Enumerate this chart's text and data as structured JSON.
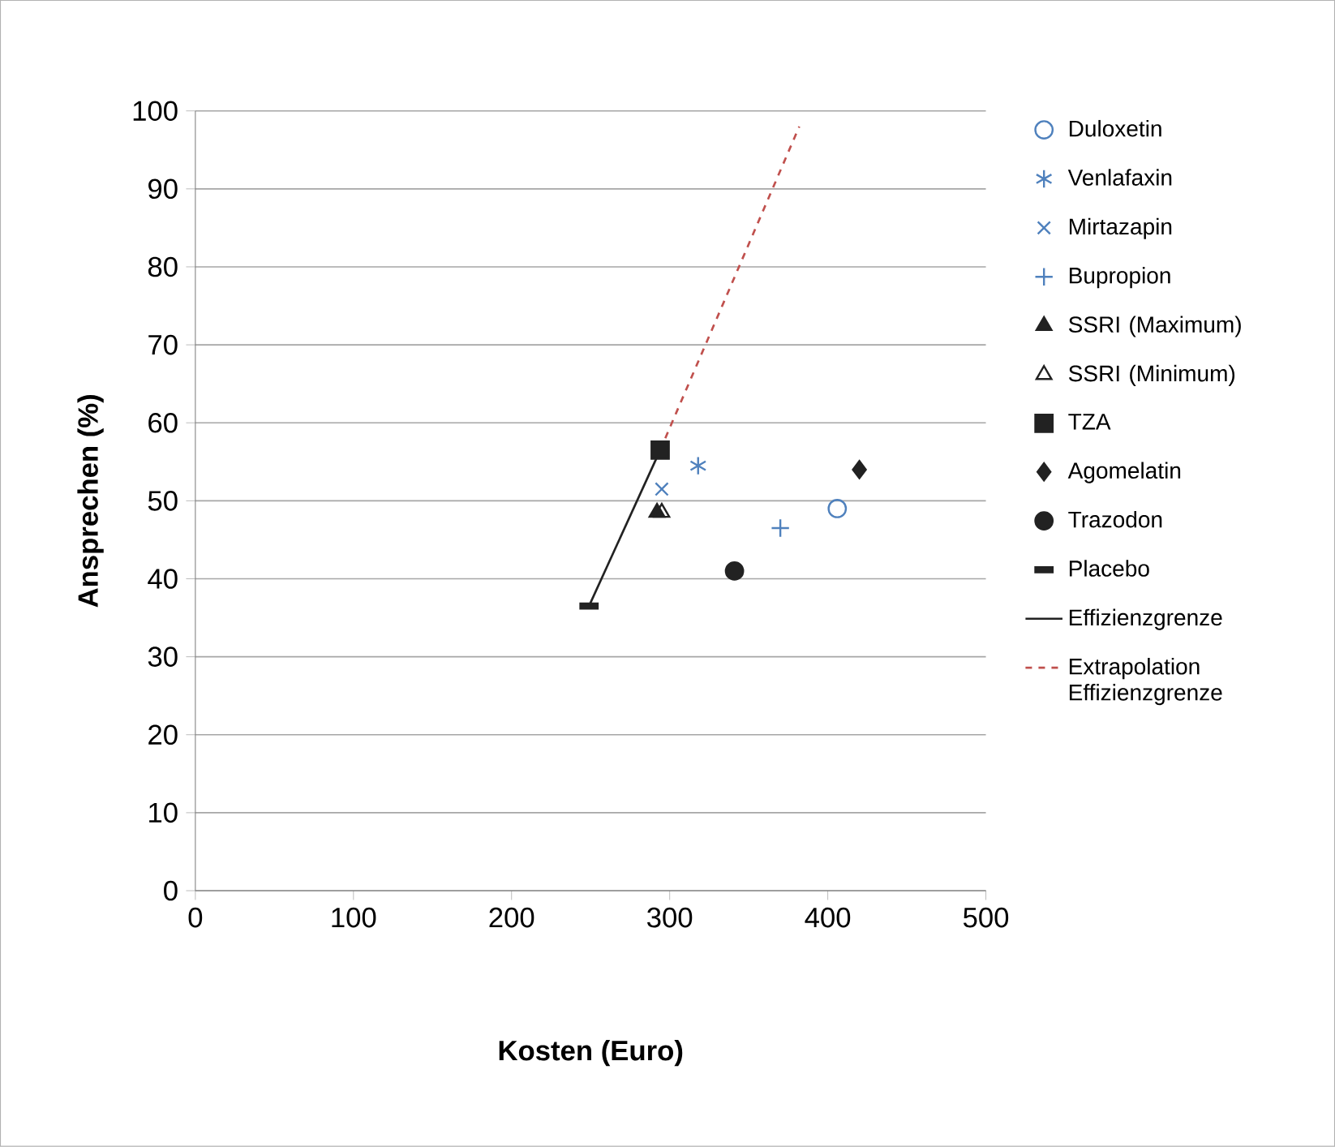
{
  "chart_data": {
    "type": "scatter",
    "xlabel": "Kosten (Euro)",
    "ylabel": "Ansprechen (%)",
    "xlim": [
      0,
      500
    ],
    "xticks": [
      0,
      100,
      200,
      300,
      400,
      500
    ],
    "ylim": [
      0,
      100
    ],
    "yticks": [
      0,
      10,
      20,
      30,
      40,
      50,
      60,
      70,
      80,
      90,
      100
    ],
    "grid": "y",
    "legend": "right",
    "series": [
      {
        "name": "Duloxetin",
        "color": "#4f81bd",
        "marker": "circle",
        "x": [
          406
        ],
        "values": [
          49
        ]
      },
      {
        "name": "Venlafaxin",
        "color": "#4f81bd",
        "marker": "cross",
        "x": [
          318
        ],
        "values": [
          54.5
        ]
      },
      {
        "name": "Mirtazapin",
        "color": "#4f81bd",
        "marker": "cross",
        "x": [
          295
        ],
        "values": [
          51.5
        ]
      },
      {
        "name": "Bupropion",
        "color": "#4f81bd",
        "marker": "plus",
        "x": [
          370
        ],
        "values": [
          46.5
        ]
      },
      {
        "name": "SSRI (Maximum)",
        "color": "#222222",
        "marker": "triangle",
        "x": [
          292
        ],
        "values": [
          48.5
        ]
      },
      {
        "name": "SSRI (Minimum)",
        "color": "#222222",
        "marker": "triangle",
        "x": [
          295
        ],
        "values": [
          48.5
        ]
      },
      {
        "name": "TZA",
        "color": "#222222",
        "marker": "square",
        "x": [
          294
        ],
        "values": [
          56.5
        ]
      },
      {
        "name": "Agomelatin",
        "color": "#222222",
        "marker": "diamond",
        "x": [
          420
        ],
        "values": [
          54
        ]
      },
      {
        "name": "Trazodon",
        "color": "#222222",
        "marker": "circle",
        "x": [
          341
        ],
        "values": [
          41
        ]
      },
      {
        "name": "Placebo",
        "color": "#222222",
        "marker": "square",
        "x": [
          249
        ],
        "values": [
          36.5
        ]
      },
      {
        "name": "Effizienzgrenze",
        "type": "line",
        "color": "#222222",
        "line_style": "solid",
        "x": [
          249,
          294
        ],
        "values": [
          36.5,
          56.5
        ]
      },
      {
        "name": "Extrapolation Effizienzgrenze",
        "type": "line",
        "color": "#c0504d",
        "line_style": "dashed",
        "x": [
          294,
          382
        ],
        "values": [
          56.5,
          98
        ]
      }
    ]
  }
}
